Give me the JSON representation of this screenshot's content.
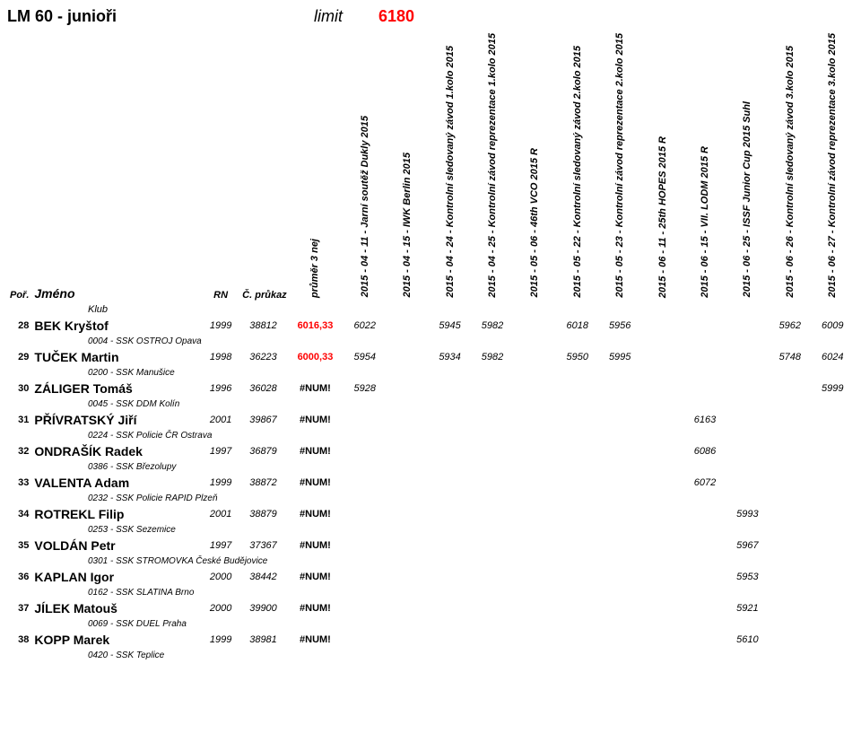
{
  "header": {
    "title": "LM 60 - junioři",
    "limit_label": "limit",
    "limit_value": "6180"
  },
  "columns": {
    "rank": "Poř.",
    "name": "Jméno",
    "rn": "RN",
    "license": "Č. průkazu",
    "avg": "průměr 3 nej",
    "klub": "Klub",
    "events": [
      "2015 - 04 - 11 - Jarní soutěž Dukly 2015",
      "2015 - 04 - 15 - IWK Berlin 2015",
      "2015 - 04 - 24 - Kontrolní sledovaný závod 1.kolo 2015",
      "2015 - 04 - 25 - Kontrolní závod reprezentace 1.kolo 2015",
      "2015 - 05 - 06 - 46th VCO 2015 R",
      "2015 - 05 - 22 - Kontrolní sledovaný závod 2.kolo 2015",
      "2015 - 05 - 23 - Kontrolní závod reprezentace 2.kolo 2015",
      "2015 - 06 - 11 - 25th HOPES 2015 R",
      "2015 - 06 - 15 - VII. LODM 2015 R",
      "2015 - 06 - 25 - ISSF Junior Cup 2015 Suhl",
      "2015 - 06 - 26 - Kontrolní sledovaný závod 3.kolo 2015",
      "2015 - 06 - 27 - Kontrolní závod reprezentace 3.kolo 2015"
    ]
  },
  "rows": [
    {
      "rank": "28",
      "name": "BEK Kryštof",
      "rn": "1999",
      "lic": "38812",
      "avg": "6016,33",
      "avg_red": true,
      "ev": [
        "6022",
        "",
        "5945",
        "5982",
        "",
        "6018",
        "5956",
        "",
        "",
        "",
        "5962",
        "6009"
      ],
      "club": "0004 - SSK OSTROJ Opava"
    },
    {
      "rank": "29",
      "name": "TUČEK Martin",
      "rn": "1998",
      "lic": "36223",
      "avg": "6000,33",
      "avg_red": true,
      "ev": [
        "5954",
        "",
        "5934",
        "5982",
        "",
        "5950",
        "5995",
        "",
        "",
        "",
        "5748",
        "6024"
      ],
      "club": "0200 - SSK Manušice"
    },
    {
      "rank": "30",
      "name": "ZÁLIGER Tomáš",
      "rn": "1996",
      "lic": "36028",
      "avg": "#NUM!",
      "avg_red": false,
      "ev": [
        "5928",
        "",
        "",
        "",
        "",
        "",
        "",
        "",
        "",
        "",
        "",
        "5999"
      ],
      "club": "0045 - SSK DDM Kolín"
    },
    {
      "rank": "31",
      "name": "PŘÍVRATSKÝ Jiří",
      "rn": "2001",
      "lic": "39867",
      "avg": "#NUM!",
      "avg_red": false,
      "ev": [
        "",
        "",
        "",
        "",
        "",
        "",
        "",
        "",
        "6163",
        "",
        "",
        ""
      ],
      "club": "0224 - SSK Policie ČR Ostrava"
    },
    {
      "rank": "32",
      "name": "ONDRAŠÍK Radek",
      "rn": "1997",
      "lic": "36879",
      "avg": "#NUM!",
      "avg_red": false,
      "ev": [
        "",
        "",
        "",
        "",
        "",
        "",
        "",
        "",
        "6086",
        "",
        "",
        ""
      ],
      "club": "0386 - SSK Březolupy"
    },
    {
      "rank": "33",
      "name": "VALENTA Adam",
      "rn": "1999",
      "lic": "38872",
      "avg": "#NUM!",
      "avg_red": false,
      "ev": [
        "",
        "",
        "",
        "",
        "",
        "",
        "",
        "",
        "6072",
        "",
        "",
        ""
      ],
      "club": "0232 - SSK Policie RAPID Plzeň"
    },
    {
      "rank": "34",
      "name": "ROTREKL Filip",
      "rn": "2001",
      "lic": "38879",
      "avg": "#NUM!",
      "avg_red": false,
      "ev": [
        "",
        "",
        "",
        "",
        "",
        "",
        "",
        "",
        "",
        "5993",
        "",
        ""
      ],
      "club": "0253 - SSK Sezemice"
    },
    {
      "rank": "35",
      "name": "VOLDÁN Petr",
      "rn": "1997",
      "lic": "37367",
      "avg": "#NUM!",
      "avg_red": false,
      "ev": [
        "",
        "",
        "",
        "",
        "",
        "",
        "",
        "",
        "",
        "5967",
        "",
        ""
      ],
      "club": "0301 - SSK STROMOVKA České Budějovice"
    },
    {
      "rank": "36",
      "name": "KAPLAN Igor",
      "rn": "2000",
      "lic": "38442",
      "avg": "#NUM!",
      "avg_red": false,
      "ev": [
        "",
        "",
        "",
        "",
        "",
        "",
        "",
        "",
        "",
        "5953",
        "",
        ""
      ],
      "club": "0162 - SSK SLATINA Brno"
    },
    {
      "rank": "37",
      "name": "JÍLEK Matouš",
      "rn": "2000",
      "lic": "39900",
      "avg": "#NUM!",
      "avg_red": false,
      "ev": [
        "",
        "",
        "",
        "",
        "",
        "",
        "",
        "",
        "",
        "5921",
        "",
        ""
      ],
      "club": "0069 - SSK DUEL Praha"
    },
    {
      "rank": "38",
      "name": "KOPP Marek",
      "rn": "1999",
      "lic": "38981",
      "avg": "#NUM!",
      "avg_red": false,
      "ev": [
        "",
        "",
        "",
        "",
        "",
        "",
        "",
        "",
        "",
        "5610",
        "",
        ""
      ],
      "club": "0420 - SSK Teplice"
    }
  ],
  "style": {
    "background_color": "#ffffff",
    "text_color": "#000000",
    "accent_red": "#ff0000",
    "font_family": "Arial",
    "title_fontsize": 18,
    "body_fontsize": 11,
    "name_fontsize": 14
  }
}
